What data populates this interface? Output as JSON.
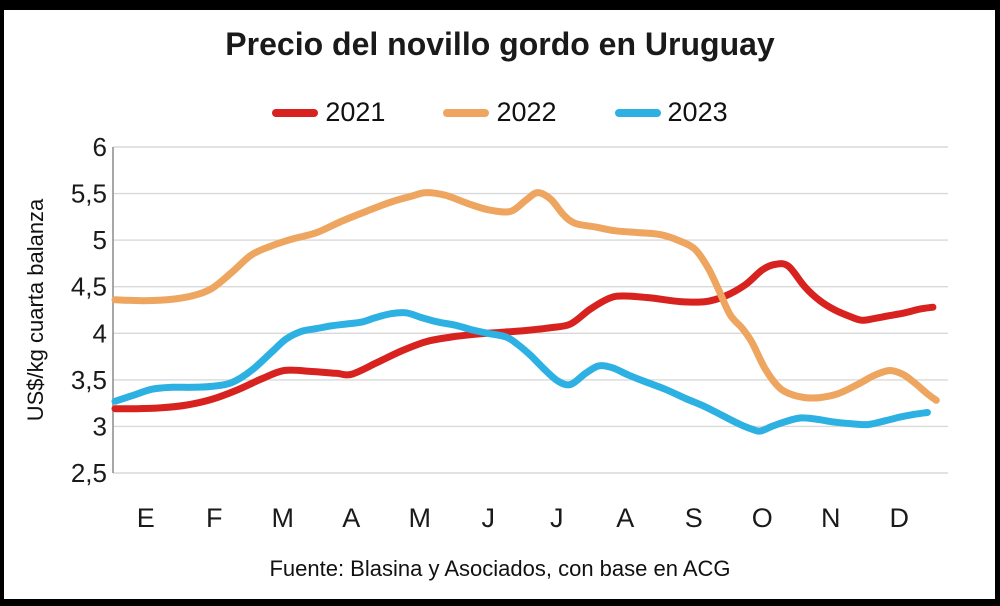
{
  "chart_data": {
    "type": "line",
    "title": "Precio del novillo gordo en Uruguay",
    "ylabel": "US$/kg cuarta balanza",
    "xlabel": "",
    "source": "Fuente: Blasina y Asociados, con base en ACG",
    "legend_position": "top",
    "grid": "horizontal",
    "x_axis": {
      "months": [
        "E",
        "F",
        "M",
        "A",
        "M",
        "J",
        "J",
        "A",
        "S",
        "O",
        "N",
        "D"
      ],
      "x_scale": "month index 0-12 (E spans 0-1 ... D spans 11-12)"
    },
    "y_axis": {
      "min": 2.5,
      "max": 6,
      "step": 0.5,
      "tick_labels": [
        "6",
        "5,5",
        "5",
        "4,5",
        "4",
        "3,5",
        "3",
        "2,5"
      ]
    },
    "series": [
      {
        "name": "2021",
        "color": "#d7221f",
        "points": [
          [
            0.0,
            3.19
          ],
          [
            0.32,
            3.19
          ],
          [
            0.68,
            3.2
          ],
          [
            1.05,
            3.23
          ],
          [
            1.41,
            3.29
          ],
          [
            1.78,
            3.39
          ],
          [
            2.14,
            3.51
          ],
          [
            2.47,
            3.6
          ],
          [
            2.87,
            3.59
          ],
          [
            3.23,
            3.57
          ],
          [
            3.45,
            3.56
          ],
          [
            3.81,
            3.68
          ],
          [
            4.18,
            3.81
          ],
          [
            4.54,
            3.91
          ],
          [
            4.91,
            3.96
          ],
          [
            5.27,
            3.99
          ],
          [
            5.63,
            4.01
          ],
          [
            6.0,
            4.03
          ],
          [
            6.36,
            4.06
          ],
          [
            6.65,
            4.1
          ],
          [
            6.94,
            4.26
          ],
          [
            7.23,
            4.38
          ],
          [
            7.45,
            4.4
          ],
          [
            7.82,
            4.38
          ],
          [
            8.25,
            4.34
          ],
          [
            8.62,
            4.34
          ],
          [
            8.91,
            4.4
          ],
          [
            9.2,
            4.52
          ],
          [
            9.45,
            4.68
          ],
          [
            9.64,
            4.74
          ],
          [
            9.83,
            4.72
          ],
          [
            10.07,
            4.5
          ],
          [
            10.29,
            4.35
          ],
          [
            10.51,
            4.25
          ],
          [
            10.73,
            4.18
          ],
          [
            10.9,
            4.14
          ],
          [
            11.09,
            4.16
          ],
          [
            11.31,
            4.19
          ],
          [
            11.53,
            4.22
          ],
          [
            11.75,
            4.26
          ],
          [
            11.94,
            4.28
          ]
        ]
      },
      {
        "name": "2022",
        "color": "#eda55f",
        "points": [
          [
            0.0,
            4.36
          ],
          [
            0.39,
            4.35
          ],
          [
            0.76,
            4.36
          ],
          [
            1.12,
            4.4
          ],
          [
            1.41,
            4.48
          ],
          [
            1.7,
            4.65
          ],
          [
            1.99,
            4.84
          ],
          [
            2.29,
            4.94
          ],
          [
            2.58,
            5.01
          ],
          [
            2.94,
            5.08
          ],
          [
            3.3,
            5.2
          ],
          [
            3.67,
            5.31
          ],
          [
            4.03,
            5.41
          ],
          [
            4.32,
            5.47
          ],
          [
            4.54,
            5.51
          ],
          [
            4.83,
            5.48
          ],
          [
            5.2,
            5.38
          ],
          [
            5.49,
            5.32
          ],
          [
            5.78,
            5.31
          ],
          [
            6.0,
            5.43
          ],
          [
            6.17,
            5.51
          ],
          [
            6.36,
            5.44
          ],
          [
            6.55,
            5.27
          ],
          [
            6.72,
            5.18
          ],
          [
            7.02,
            5.14
          ],
          [
            7.31,
            5.1
          ],
          [
            7.67,
            5.08
          ],
          [
            7.96,
            5.06
          ],
          [
            8.25,
            4.99
          ],
          [
            8.47,
            4.9
          ],
          [
            8.66,
            4.7
          ],
          [
            8.81,
            4.47
          ],
          [
            8.98,
            4.2
          ],
          [
            9.16,
            4.05
          ],
          [
            9.3,
            3.9
          ],
          [
            9.49,
            3.62
          ],
          [
            9.68,
            3.43
          ],
          [
            9.85,
            3.35
          ],
          [
            10.07,
            3.31
          ],
          [
            10.29,
            3.31
          ],
          [
            10.55,
            3.35
          ],
          [
            10.84,
            3.45
          ],
          [
            11.09,
            3.55
          ],
          [
            11.31,
            3.6
          ],
          [
            11.5,
            3.56
          ],
          [
            11.67,
            3.47
          ],
          [
            11.86,
            3.35
          ],
          [
            11.99,
            3.28
          ]
        ]
      },
      {
        "name": "2023",
        "color": "#2db0e2",
        "points": [
          [
            0.0,
            3.27
          ],
          [
            0.25,
            3.33
          ],
          [
            0.54,
            3.4
          ],
          [
            0.83,
            3.42
          ],
          [
            1.12,
            3.42
          ],
          [
            1.41,
            3.43
          ],
          [
            1.7,
            3.47
          ],
          [
            1.99,
            3.6
          ],
          [
            2.29,
            3.8
          ],
          [
            2.5,
            3.94
          ],
          [
            2.72,
            4.02
          ],
          [
            2.94,
            4.05
          ],
          [
            3.16,
            4.08
          ],
          [
            3.38,
            4.1
          ],
          [
            3.6,
            4.12
          ],
          [
            3.81,
            4.17
          ],
          [
            4.03,
            4.21
          ],
          [
            4.25,
            4.22
          ],
          [
            4.47,
            4.17
          ],
          [
            4.72,
            4.12
          ],
          [
            4.95,
            4.09
          ],
          [
            5.2,
            4.04
          ],
          [
            5.44,
            4.0
          ],
          [
            5.71,
            3.96
          ],
          [
            5.88,
            3.88
          ],
          [
            6.07,
            3.76
          ],
          [
            6.26,
            3.62
          ],
          [
            6.46,
            3.49
          ],
          [
            6.65,
            3.45
          ],
          [
            6.87,
            3.57
          ],
          [
            7.06,
            3.65
          ],
          [
            7.26,
            3.63
          ],
          [
            7.5,
            3.55
          ],
          [
            7.74,
            3.48
          ],
          [
            8.03,
            3.4
          ],
          [
            8.33,
            3.3
          ],
          [
            8.62,
            3.21
          ],
          [
            8.86,
            3.12
          ],
          [
            9.1,
            3.03
          ],
          [
            9.3,
            2.97
          ],
          [
            9.42,
            2.95
          ],
          [
            9.59,
            3.0
          ],
          [
            9.78,
            3.05
          ],
          [
            10.0,
            3.09
          ],
          [
            10.22,
            3.08
          ],
          [
            10.47,
            3.05
          ],
          [
            10.73,
            3.03
          ],
          [
            10.99,
            3.02
          ],
          [
            11.24,
            3.06
          ],
          [
            11.46,
            3.1
          ],
          [
            11.67,
            3.13
          ],
          [
            11.86,
            3.15
          ]
        ]
      }
    ],
    "colors": {
      "gridline": "#d9d9d9",
      "axis_line": "#8c8c8c",
      "frame_border": "#000000",
      "background": "#ffffff",
      "text": "#1a1a1a"
    }
  }
}
